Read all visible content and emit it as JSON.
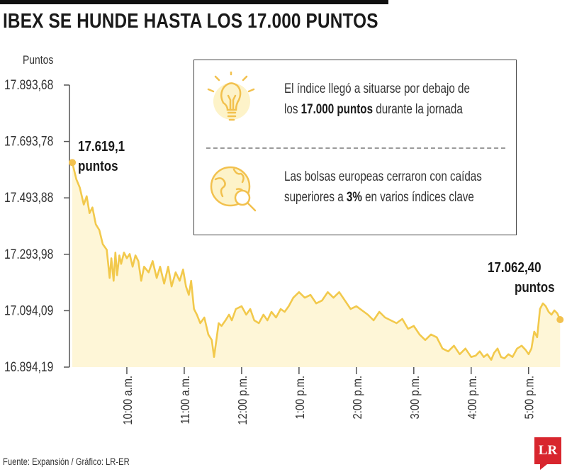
{
  "header": {
    "title": "IBEX SE HUNDE HASTA LOS 17.000 PUNTOS"
  },
  "chart_data": {
    "type": "line",
    "ylabel": "Puntos",
    "yticks": [
      "17.893,68",
      "17.693,78",
      "17.493,88",
      "17.293,98",
      "17.094,09",
      "16.894,19"
    ],
    "ytick_values": [
      17893.68,
      17693.78,
      17493.88,
      17293.98,
      17094.09,
      16894.19
    ],
    "ylim": [
      16894.19,
      17893.68
    ],
    "xticks": [
      "10:00 a.m.",
      "11:00 a.m.",
      "12:00 p.m.",
      "1:00 p.m.",
      "2:00 p.m.",
      "3:00 p.m.",
      "4:00 p.m.",
      "5:00 p.m."
    ],
    "xtick_values": [
      10,
      11,
      12,
      13,
      14,
      15,
      16,
      17
    ],
    "xlim": [
      9.0,
      17.67
    ],
    "series": [
      {
        "x": [
          9.05,
          9.12,
          9.18,
          9.25,
          9.3,
          9.35,
          9.4,
          9.46,
          9.52,
          9.58,
          9.65,
          9.7,
          9.73,
          9.77,
          9.8,
          9.83,
          9.87,
          9.9,
          9.95,
          10.0,
          10.05,
          10.1,
          10.15,
          10.2,
          10.25,
          10.3,
          10.38,
          10.45,
          10.52,
          10.58,
          10.65,
          10.72,
          10.78,
          10.85,
          10.92,
          10.98,
          11.03,
          11.08,
          11.12,
          11.17,
          11.22,
          11.28,
          11.35,
          11.42,
          11.48,
          11.52,
          11.56,
          11.6,
          11.65,
          11.72,
          11.78,
          11.83,
          11.9,
          12.0,
          12.08,
          12.15,
          12.22,
          12.3,
          12.38,
          12.45,
          12.52,
          12.6,
          12.68,
          12.75,
          12.82,
          12.9,
          13.0,
          13.1,
          13.2,
          13.3,
          13.4,
          13.5,
          13.6,
          13.7,
          13.8,
          13.9,
          14.0,
          14.1,
          14.2,
          14.3,
          14.4,
          14.5,
          14.6,
          14.7,
          14.8,
          14.9,
          15.0,
          15.1,
          15.2,
          15.3,
          15.4,
          15.5,
          15.6,
          15.7,
          15.8,
          15.9,
          16.0,
          16.08,
          16.15,
          16.22,
          16.28,
          16.35,
          16.4,
          16.46,
          16.52,
          16.58,
          16.65,
          16.72,
          16.8,
          16.88,
          16.95,
          17.0,
          17.05,
          17.1,
          17.15,
          17.2,
          17.25,
          17.3,
          17.35,
          17.4,
          17.45,
          17.5,
          17.55
        ],
        "y": [
          17619.1,
          17560,
          17530,
          17470,
          17500,
          17440,
          17460,
          17400,
          17380,
          17330,
          17310,
          17210,
          17280,
          17200,
          17300,
          17220,
          17290,
          17260,
          17300,
          17280,
          17295,
          17250,
          17290,
          17270,
          17200,
          17250,
          17230,
          17270,
          17210,
          17250,
          17190,
          17250,
          17180,
          17230,
          17200,
          17240,
          17180,
          17150,
          17200,
          17100,
          17080,
          17050,
          17070,
          17010,
          16990,
          16930,
          16990,
          17050,
          17040,
          17060,
          17080,
          17060,
          17100,
          17110,
          17080,
          17100,
          17060,
          17050,
          17080,
          17060,
          17090,
          17070,
          17100,
          17090,
          17110,
          17140,
          17160,
          17140,
          17150,
          17120,
          17130,
          17160,
          17140,
          17160,
          17130,
          17100,
          17110,
          17095,
          17080,
          17060,
          17090,
          17070,
          17060,
          17050,
          17065,
          17030,
          17040,
          17010,
          16990,
          17010,
          17000,
          16960,
          16950,
          16970,
          16940,
          16960,
          16930,
          16935,
          16950,
          16930,
          16940,
          16920,
          16945,
          16960,
          16930,
          16925,
          16940,
          16930,
          16960,
          16970,
          16955,
          16940,
          16960,
          17020,
          17000,
          17100,
          17120,
          17110,
          17090,
          17080,
          17095,
          17085,
          17062.4
        ]
      }
    ],
    "annotations": [
      {
        "text": [
          "17.619,1",
          "puntos"
        ],
        "x": 9.05,
        "y": 17619.1
      },
      {
        "text": [
          "17.062,40",
          "puntos"
        ],
        "x": 17.55,
        "y": 17062.4
      }
    ],
    "colors": {
      "line": "#f2c94c",
      "area": "#fdf3c9",
      "dot": "#f2c14e",
      "axis": "#555555"
    }
  },
  "info": {
    "items": [
      {
        "icon": "lightbulb-icon",
        "parts": [
          "El índice llegó a situarse por debajo de",
          "los ",
          "17.000 puntos",
          " durante la jornada"
        ]
      },
      {
        "icon": "globe-magnifier-icon",
        "parts": [
          "Las bolsas europeas cerraron con caídas",
          "superiores a ",
          "3%",
          " en varios índices clave"
        ]
      }
    ]
  },
  "footer": {
    "source": "Fuente: Expansión / Gráfico: LR-ER",
    "logo": "LR"
  }
}
